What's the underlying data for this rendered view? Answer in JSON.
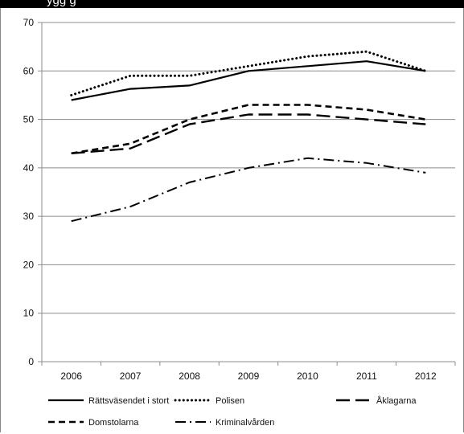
{
  "header": {
    "text": "ygg                    g"
  },
  "chart_data": {
    "type": "line",
    "title": "",
    "xlabel": "",
    "ylabel": "",
    "x": [
      "2006",
      "2007",
      "2008",
      "2009",
      "2010",
      "2011",
      "2012"
    ],
    "yticks": [
      "0",
      "10",
      "20",
      "30",
      "40",
      "50",
      "60",
      "70"
    ],
    "ylim": [
      0,
      70
    ],
    "grid": "horizontal",
    "legend_position": "bottom",
    "series": [
      {
        "name": "Rättsväsendet i stort",
        "style": "solid",
        "color": "#000000",
        "values": [
          54,
          56.3,
          57,
          60,
          61,
          62,
          60
        ]
      },
      {
        "name": "Polisen",
        "style": "dotted",
        "color": "#000000",
        "values": [
          55,
          59,
          59,
          61,
          63,
          64,
          60
        ]
      },
      {
        "name": "Åklagarna",
        "style": "long-dash",
        "color": "#000000",
        "values": [
          43,
          44,
          49,
          51,
          51,
          50,
          49
        ]
      },
      {
        "name": "Domstolarna",
        "style": "short-dash",
        "color": "#000000",
        "values": [
          43,
          45,
          50,
          53,
          53,
          52,
          50
        ]
      },
      {
        "name": "Kriminalvården",
        "style": "dash-dot",
        "color": "#000000",
        "values": [
          29,
          32,
          37,
          40,
          42,
          41,
          39
        ]
      }
    ]
  }
}
